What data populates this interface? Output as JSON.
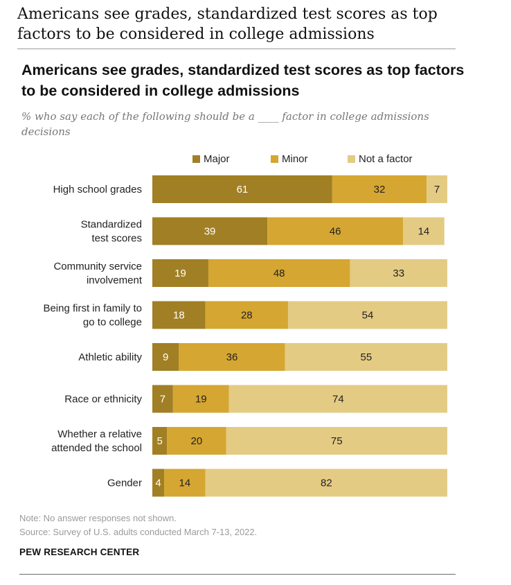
{
  "page": {
    "headline": "Americans see grades, standardized test scores as top factors to be considered in college admissions",
    "note": "Note: No answer responses not shown.",
    "source": "Source: Survey of U.S. adults conducted March 7-13, 2022.",
    "brand": "PEW RESEARCH CENTER"
  },
  "colors": {
    "major": "#a17f24",
    "minor": "#d5a631",
    "not_a_factor": "#e4cb83",
    "label_light": "#ffffff",
    "label_dark": "#222222"
  },
  "chart_data": {
    "type": "bar",
    "orientation": "horizontal",
    "stacked": true,
    "title": "Americans see grades, standardized test scores as top factors to be considered in college admissions",
    "subtitle": "% who say each of the following should be a ____ factor in college admissions decisions",
    "legend_position": "top",
    "grid": false,
    "xlim": [
      0,
      100
    ],
    "categories": [
      "High school grades",
      "Standardized test scores",
      "Community service involvement",
      "Being first in family to go to college",
      "Athletic ability",
      "Race or ethnicity",
      "Whether a relative attended the school",
      "Gender"
    ],
    "category_label_lines": [
      [
        "High school grades"
      ],
      [
        "Standardized",
        "test scores"
      ],
      [
        "Community service",
        "involvement"
      ],
      [
        "Being first in family to",
        "go to college"
      ],
      [
        "Athletic ability"
      ],
      [
        "Race or ethnicity"
      ],
      [
        "Whether a relative",
        "attended the school"
      ],
      [
        "Gender"
      ]
    ],
    "series": [
      {
        "name": "Major",
        "values": [
          61,
          39,
          19,
          18,
          9,
          7,
          5,
          4
        ]
      },
      {
        "name": "Minor",
        "values": [
          32,
          46,
          48,
          28,
          36,
          19,
          20,
          14
        ]
      },
      {
        "name": "Not a factor",
        "values": [
          7,
          14,
          33,
          54,
          55,
          74,
          75,
          82
        ]
      }
    ]
  }
}
